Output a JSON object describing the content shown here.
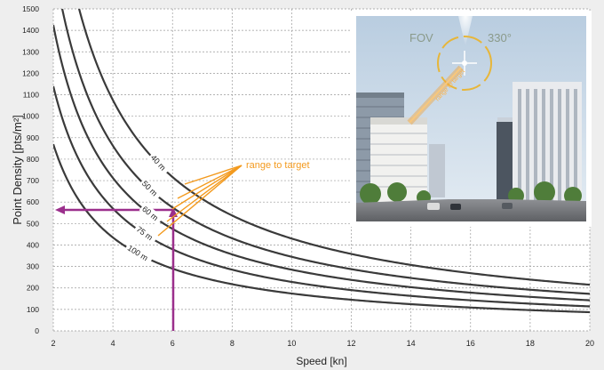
{
  "chart_data": {
    "type": "line",
    "title": "",
    "xlabel": "Speed [kn]",
    "ylabel": "Point Density [pts/m²]",
    "xlim": [
      2,
      20
    ],
    "ylim": [
      0,
      1500
    ],
    "grid": true,
    "xticks": [
      2,
      4,
      6,
      8,
      10,
      12,
      14,
      16,
      18,
      20
    ],
    "yticks": [
      0,
      100,
      200,
      300,
      400,
      500,
      600,
      700,
      800,
      900,
      1000,
      1100,
      1200,
      1300,
      1400,
      1500
    ],
    "series": [
      {
        "name": "40 m",
        "k": 4300
      },
      {
        "name": "50 m",
        "k": 3450
      },
      {
        "name": "60 m",
        "k": 2850
      },
      {
        "name": "75 m",
        "k": 2280
      },
      {
        "name": "100 m",
        "k": 1740
      }
    ],
    "series_formula": "y = k / x",
    "annotations": {
      "range_label": "range to target",
      "example_speed": 6,
      "example_density": 565
    },
    "colors": {
      "curves": "#3a3a3a",
      "annotation": "#f39a1e",
      "marker": "#9b2f8c",
      "grid": "#9a9a9a"
    }
  },
  "inset": {
    "fov_label": "FOV",
    "fov_value": "330°",
    "range_label": "range to target"
  }
}
